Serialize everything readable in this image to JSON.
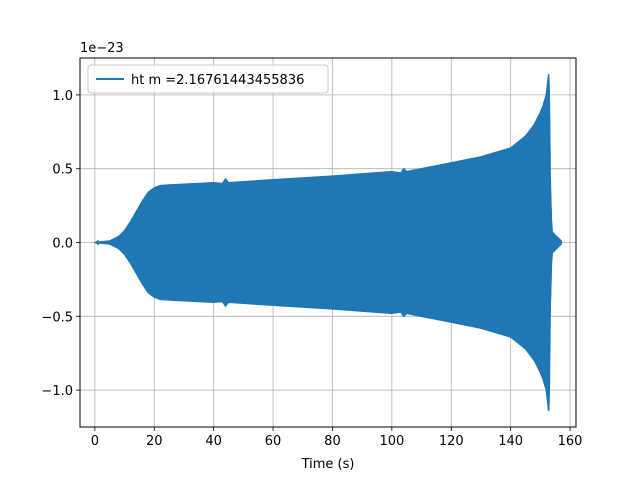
{
  "chart_data": {
    "type": "line",
    "title": "",
    "xlabel": "Time (s)",
    "ylabel": "",
    "y_offset_label": "1e−23",
    "xlim": [
      -5,
      162
    ],
    "ylim": [
      -1.25,
      1.25
    ],
    "xticks": [
      0,
      20,
      40,
      60,
      80,
      100,
      120,
      140,
      160
    ],
    "xtick_labels": [
      "0",
      "20",
      "40",
      "60",
      "80",
      "100",
      "120",
      "140",
      "160"
    ],
    "yticks": [
      -1.0,
      -0.5,
      0.0,
      0.5,
      1.0
    ],
    "ytick_labels": [
      "−1.0",
      "−0.5",
      "0.0",
      "0.5",
      "1.0"
    ],
    "grid": true,
    "legend_position": "top-left",
    "series": [
      {
        "name": "ht m =2.16761443455836",
        "color": "#1f77b4",
        "envelope_upper": {
          "x": [
            0,
            5,
            8,
            10,
            12,
            14,
            16,
            18,
            20,
            22,
            25,
            30,
            40,
            43,
            44,
            45,
            60,
            80,
            100,
            103,
            104,
            105,
            120,
            130,
            140,
            145,
            148,
            150,
            151,
            152,
            152.8,
            153,
            153.3,
            153.7,
            154,
            155,
            156,
            157
          ],
          "y": [
            0.0,
            0.01,
            0.04,
            0.08,
            0.14,
            0.21,
            0.28,
            0.34,
            0.37,
            0.385,
            0.39,
            0.395,
            0.405,
            0.4,
            0.43,
            0.405,
            0.425,
            0.45,
            0.48,
            0.47,
            0.5,
            0.48,
            0.54,
            0.58,
            0.64,
            0.72,
            0.8,
            0.88,
            0.93,
            1.0,
            1.14,
            1.0,
            0.45,
            0.15,
            0.07,
            0.05,
            0.03,
            0.01
          ]
        },
        "envelope_lower": {
          "x": [
            0,
            5,
            8,
            10,
            12,
            14,
            16,
            18,
            20,
            22,
            25,
            30,
            40,
            43,
            44,
            45,
            60,
            80,
            100,
            103,
            104,
            105,
            120,
            130,
            140,
            145,
            148,
            150,
            151,
            152,
            152.8,
            153,
            153.3,
            153.7,
            154,
            155,
            156,
            157
          ],
          "y": [
            0.0,
            -0.01,
            -0.04,
            -0.08,
            -0.14,
            -0.21,
            -0.28,
            -0.34,
            -0.37,
            -0.385,
            -0.39,
            -0.395,
            -0.405,
            -0.4,
            -0.43,
            -0.405,
            -0.425,
            -0.45,
            -0.48,
            -0.47,
            -0.5,
            -0.48,
            -0.54,
            -0.58,
            -0.64,
            -0.72,
            -0.8,
            -0.88,
            -0.93,
            -1.0,
            -1.14,
            -1.0,
            -0.45,
            -0.15,
            -0.07,
            -0.05,
            -0.03,
            -0.01
          ]
        }
      }
    ]
  }
}
